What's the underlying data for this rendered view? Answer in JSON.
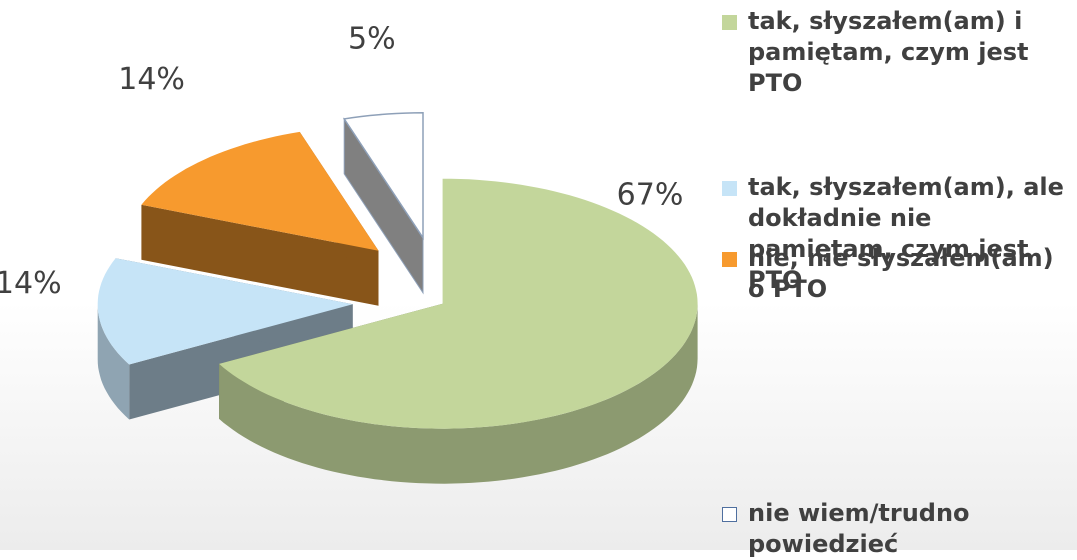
{
  "chart_data": {
    "type": "pie",
    "categories": [
      "tak, słyszałem(am) i pamiętam, czym jest PTO",
      "tak, słyszałem(am), ale dokładnie nie pamiętam, czym jest PTO",
      "nie, nie słyszałem(am) o PTO",
      "nie wiem/trudno powiedzieć"
    ],
    "values": [
      67,
      14,
      14,
      5
    ],
    "value_labels": [
      "67%",
      "14%",
      "14%",
      "5%"
    ],
    "colors": [
      "#c3d69b",
      "#c6e4f7",
      "#f79a2e",
      "#ffffff"
    ],
    "legend": "right"
  }
}
